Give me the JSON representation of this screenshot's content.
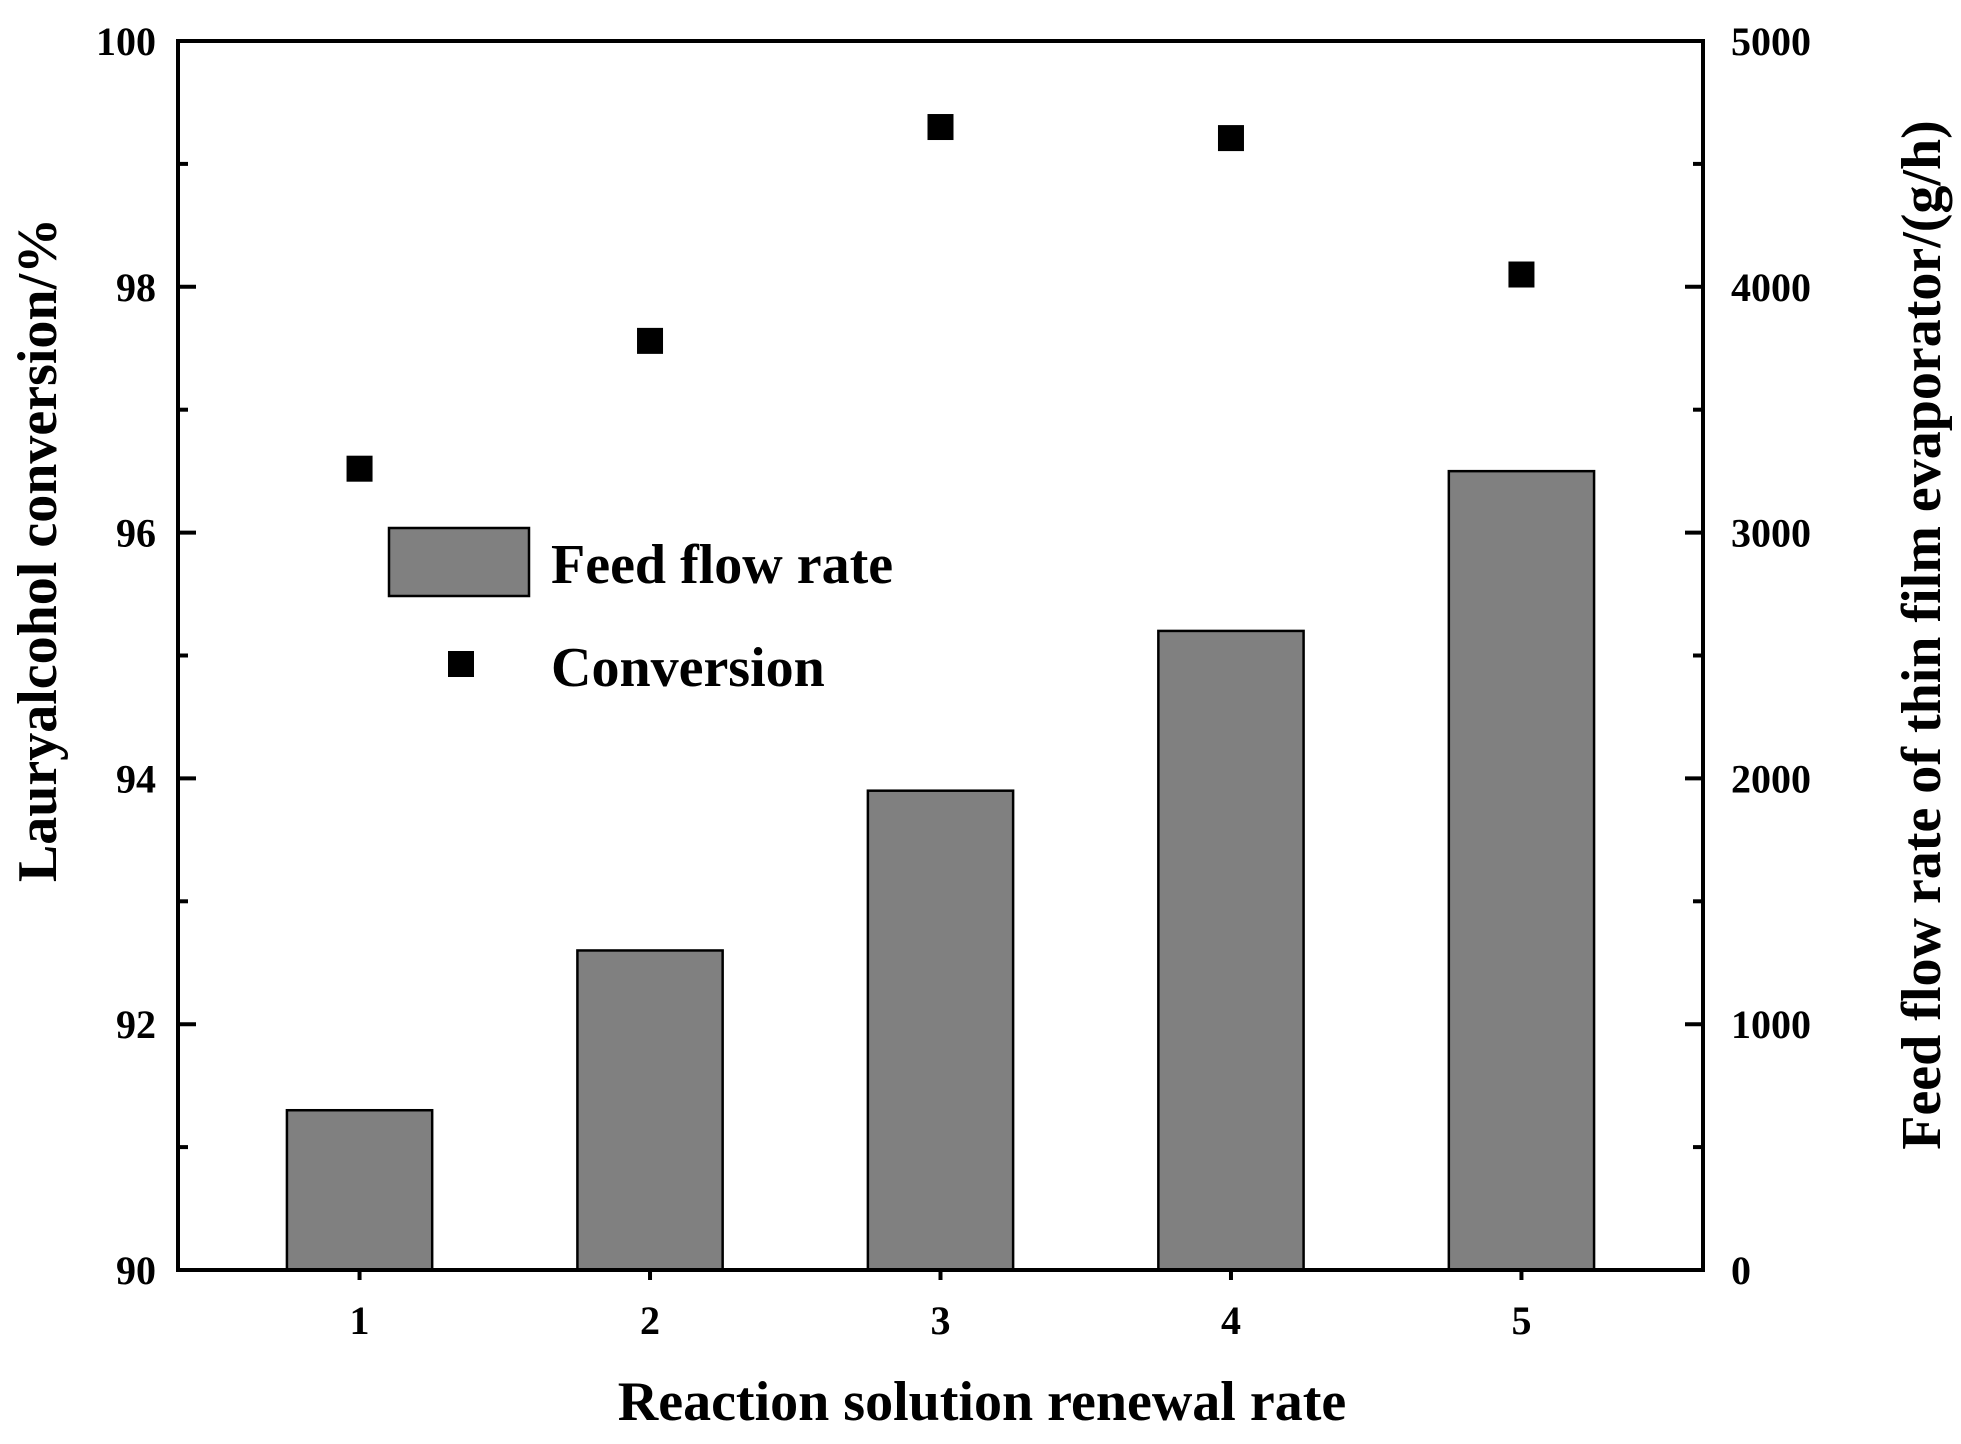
{
  "chart_data": {
    "type": "bar",
    "title": "",
    "xlabel": "Reaction solution renewal rate",
    "categories": [
      "1",
      "2",
      "3",
      "4",
      "5"
    ],
    "y_left": {
      "label": "Lauryalcohol conversion/%",
      "range": [
        90,
        100
      ],
      "ticks": [
        "90",
        "92",
        "94",
        "96",
        "98",
        "100"
      ]
    },
    "y_right": {
      "label": "Feed flow rate of thin film evaporator/(g/h)",
      "range": [
        0,
        5000
      ],
      "ticks": [
        "0",
        "1000",
        "2000",
        "3000",
        "4000",
        "5000"
      ]
    },
    "series": [
      {
        "name": "Feed flow rate",
        "type": "bar",
        "axis": "right",
        "color": "#808080",
        "values": [
          650,
          1300,
          1950,
          2600,
          3250
        ]
      },
      {
        "name": "Conversion",
        "type": "scatter",
        "axis": "left",
        "color": "#000000",
        "values": [
          96.52,
          97.56,
          99.3,
          99.21,
          98.1
        ]
      }
    ],
    "legend": {
      "position": "upper-left",
      "items": [
        "Feed flow rate",
        "Conversion"
      ]
    },
    "grid": false
  }
}
